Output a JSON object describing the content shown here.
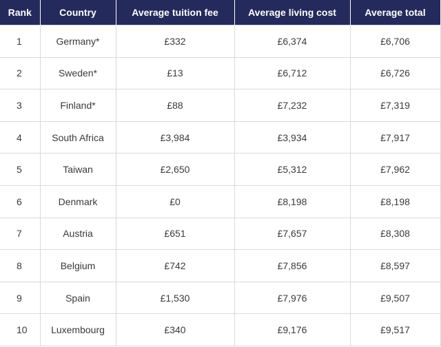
{
  "table": {
    "header_bg": "#242a5c",
    "columns": [
      "Rank",
      "Country",
      "Average tuition fee",
      "Average living cost",
      "Average total"
    ],
    "rows": [
      [
        "1",
        "Germany*",
        "£332",
        "£6,374",
        "£6,706"
      ],
      [
        "2",
        "Sweden*",
        "£13",
        "£6,712",
        "£6,726"
      ],
      [
        "3",
        "Finland*",
        "£88",
        "£7,232",
        "£7,319"
      ],
      [
        "4",
        "South Africa",
        "£3,984",
        "£3,934",
        "£7,917"
      ],
      [
        "5",
        "Taiwan",
        "£2,650",
        "£5,312",
        "£7,962"
      ],
      [
        "6",
        "Denmark",
        "£0",
        "£8,198",
        "£8,198"
      ],
      [
        "7",
        "Austria",
        "£651",
        "£7,657",
        "£8,308"
      ],
      [
        "8",
        "Belgium",
        "£742",
        "£7,856",
        "£8,597"
      ],
      [
        "9",
        "Spain",
        "£1,530",
        "£7,976",
        "£9,507"
      ],
      [
        "10",
        "Luxembourg",
        "£340",
        "£9,176",
        "£9,517"
      ]
    ]
  }
}
